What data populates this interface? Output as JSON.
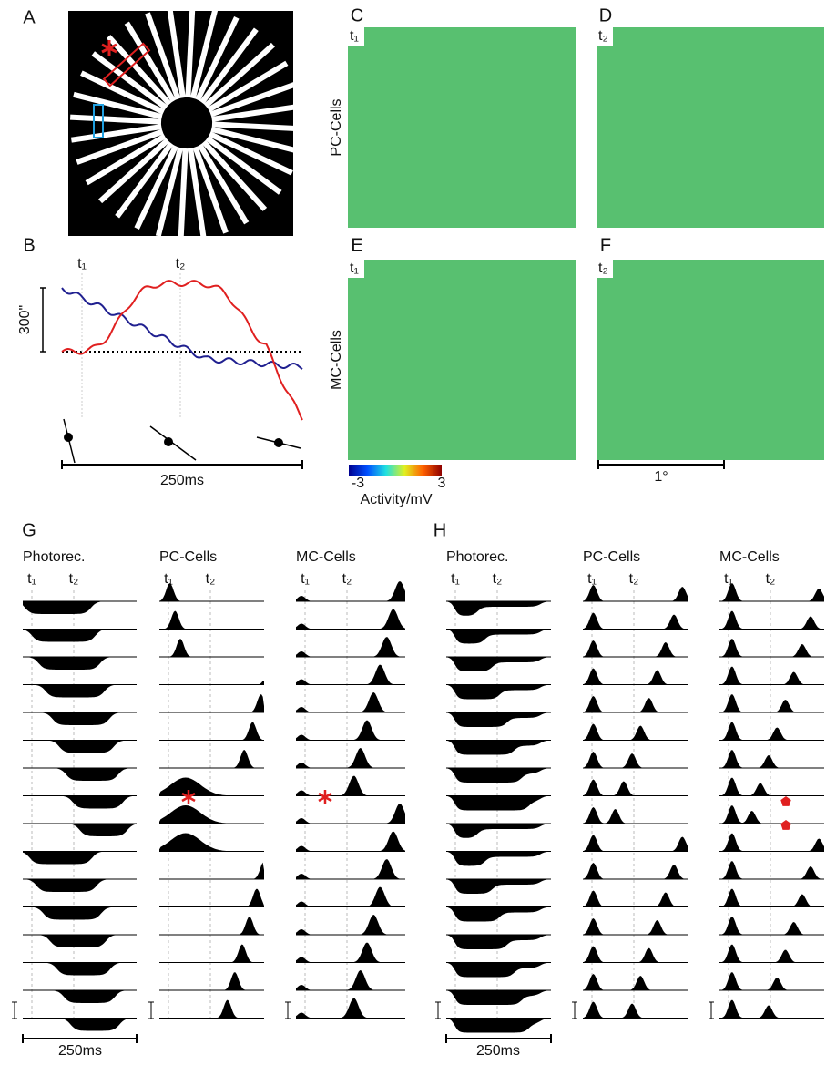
{
  "panel_labels": [
    "A",
    "B",
    "C",
    "D",
    "E",
    "F",
    "G",
    "H"
  ],
  "panel_b": {
    "t_labels": [
      "t₁",
      "t₂"
    ],
    "scale_label": "300\"",
    "time_label": "250ms"
  },
  "maps": {
    "row_labels": [
      "PC-Cells",
      "MC-Cells"
    ],
    "corner_labels": [
      "t₁",
      "t₂",
      "t₁",
      "t₂"
    ],
    "colorbar": {
      "ticks": [
        -3,
        3
      ],
      "label": "Activity/mV"
    },
    "scale_label": "1°"
  },
  "panel_g": {
    "columns": [
      {
        "title": "Photorec.",
        "t_labels": [
          "t₁",
          "t₂"
        ]
      },
      {
        "title": "PC-Cells",
        "t_labels": [
          "t₁",
          "t₂"
        ]
      },
      {
        "title": "MC-Cells",
        "t_labels": [
          "t₁",
          "t₂"
        ]
      }
    ],
    "time_label": "250ms"
  },
  "panel_h": {
    "columns": [
      {
        "title": "Photorec.",
        "t_labels": [
          "t₁",
          "t₂"
        ]
      },
      {
        "title": "PC-Cells",
        "t_labels": [
          "t₁",
          "t₂"
        ]
      },
      {
        "title": "MC-Cells",
        "t_labels": [
          "t₁",
          "t₂"
        ]
      }
    ],
    "time_label": "250ms"
  }
}
